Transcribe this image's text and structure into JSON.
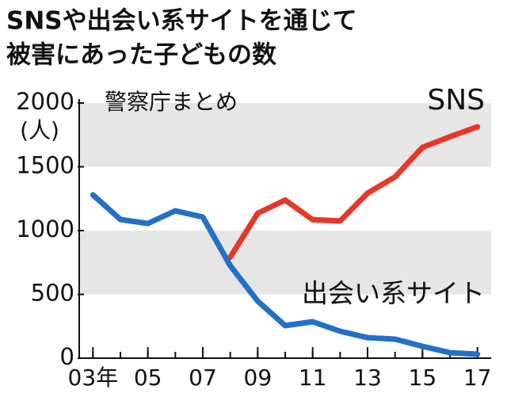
{
  "chart_data": {
    "type": "line",
    "title": [
      "SNSや出会い系サイトを通じて",
      "被害にあった子どもの数"
    ],
    "subtitle": "警察庁まとめ",
    "y_label": "(人)",
    "x": [
      2003,
      2004,
      2005,
      2006,
      2007,
      2008,
      2009,
      2010,
      2011,
      2012,
      2013,
      2014,
      2015,
      2016,
      2017
    ],
    "series": [
      {
        "name": "SNS",
        "color": "#e8372a",
        "values": [
          null,
          null,
          null,
          null,
          null,
          792,
          1136,
          1239,
          1085,
          1076,
          1293,
          1421,
          1652,
          1736,
          1813
        ]
      },
      {
        "name": "出会い系サイト",
        "color": "#2270c8",
        "values": [
          1280,
          1087,
          1056,
          1155,
          1106,
          724,
          447,
          255,
          286,
          211,
          161,
          149,
          93,
          43,
          31
        ]
      }
    ],
    "xlim": [
      2002.5,
      2017.5
    ],
    "xticks": [
      {
        "value": 2003,
        "label": "03年"
      },
      {
        "value": 2005,
        "label": "05"
      },
      {
        "value": 2007,
        "label": "07"
      },
      {
        "value": 2009,
        "label": "09"
      },
      {
        "value": 2011,
        "label": "11"
      },
      {
        "value": 2013,
        "label": "13"
      },
      {
        "value": 2015,
        "label": "15"
      },
      {
        "value": 2017,
        "label": "17"
      }
    ],
    "ylim": [
      0,
      2000
    ],
    "yticks": [
      0,
      500,
      1000,
      1500,
      2000
    ],
    "grid": "bands"
  }
}
